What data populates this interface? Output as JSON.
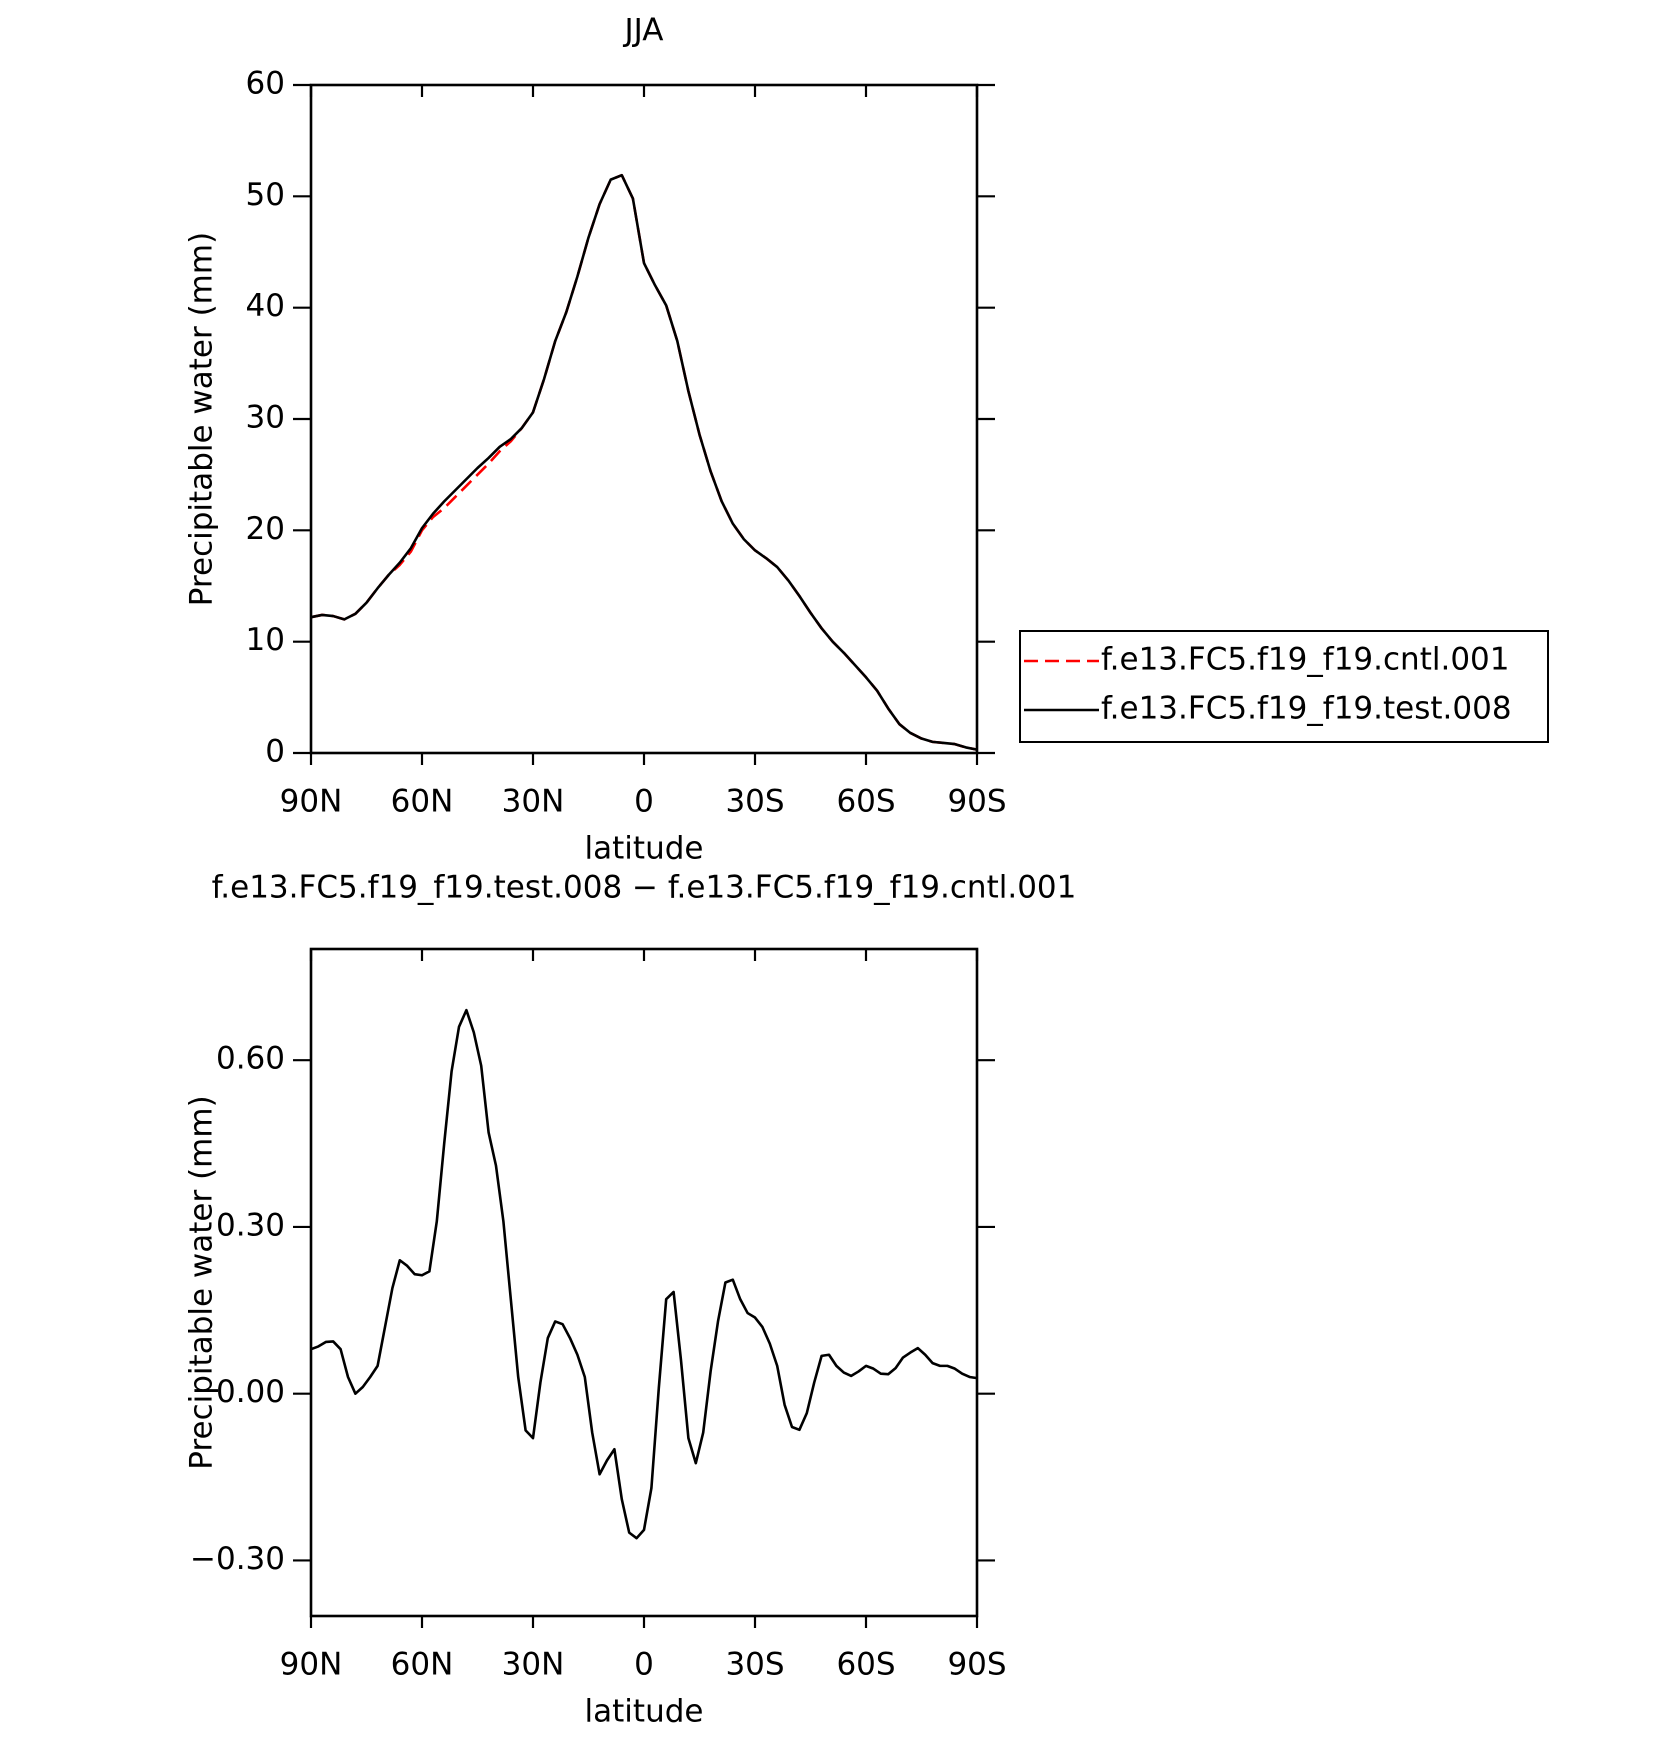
{
  "chart_data": [
    {
      "type": "line",
      "title": "JJA",
      "xlabel": "latitude",
      "ylabel": "Precipitable water (mm)",
      "x": [
        90,
        87,
        84,
        81,
        78,
        75,
        72,
        69,
        66,
        63,
        60,
        57,
        54,
        51,
        48,
        45,
        42,
        39,
        36,
        33,
        30,
        27,
        24,
        21,
        18,
        15,
        12,
        9,
        6,
        3,
        0,
        -3,
        -6,
        -9,
        -12,
        -15,
        -18,
        -21,
        -24,
        -27,
        -30,
        -33,
        -36,
        -39,
        -42,
        -45,
        -48,
        -51,
        -54,
        -57,
        -60,
        -63,
        -66,
        -69,
        -72,
        -75,
        -78,
        -81,
        -84,
        -87,
        -90
      ],
      "series": [
        {
          "name": "f.e13.FC5.f19_f19.cntl.001",
          "color": "#ff0000",
          "style": "dashed",
          "values": [
            12.2,
            12.4,
            12.3,
            12.0,
            12.5,
            13.5,
            14.8,
            16.0,
            16.9,
            18.1,
            20.0,
            21.2,
            22.0,
            23.0,
            24.0,
            25.0,
            26.0,
            27.1,
            28.0,
            29.2,
            30.6,
            33.6,
            37.0,
            39.6,
            42.8,
            46.3,
            49.3,
            51.5,
            51.9,
            49.8,
            44.0,
            42.0,
            40.2,
            37.0,
            32.5,
            28.6,
            25.3,
            22.6,
            20.6,
            19.2,
            18.2,
            17.5,
            16.7,
            15.5,
            14.1,
            12.6,
            11.2,
            10.0,
            9.0,
            7.9,
            6.8,
            5.6,
            4.0,
            2.6,
            1.8,
            1.3,
            1.0,
            0.9,
            0.8,
            0.5,
            0.3
          ]
        },
        {
          "name": "f.e13.FC5.f19_f19.test.008",
          "color": "#000000",
          "style": "solid",
          "values": [
            12.2,
            12.4,
            12.3,
            12.0,
            12.5,
            13.5,
            14.8,
            16.0,
            17.1,
            18.4,
            20.2,
            21.5,
            22.6,
            23.6,
            24.6,
            25.6,
            26.5,
            27.5,
            28.2,
            29.2,
            30.6,
            33.6,
            37.0,
            39.6,
            42.8,
            46.3,
            49.3,
            51.5,
            51.9,
            49.8,
            44.0,
            42.0,
            40.2,
            37.0,
            32.5,
            28.6,
            25.3,
            22.6,
            20.6,
            19.2,
            18.2,
            17.5,
            16.7,
            15.5,
            14.1,
            12.6,
            11.2,
            10.0,
            9.0,
            7.9,
            6.8,
            5.6,
            4.0,
            2.6,
            1.8,
            1.3,
            1.0,
            0.9,
            0.8,
            0.5,
            0.3
          ]
        }
      ],
      "xlim": [
        90,
        -90
      ],
      "xticks": [
        {
          "value": 90,
          "label": "90N"
        },
        {
          "value": 60,
          "label": "60N"
        },
        {
          "value": 30,
          "label": "30N"
        },
        0,
        {
          "value": -30,
          "label": "30S"
        },
        {
          "value": -60,
          "label": "60S"
        },
        {
          "value": -90,
          "label": "90S"
        }
      ],
      "ylim": [
        0,
        60
      ],
      "yticks": [
        0,
        10,
        20,
        30,
        40,
        50,
        60
      ],
      "legend": "right"
    },
    {
      "type": "line",
      "title": "f.e13.FC5.f19_f19.test.008 − f.e13.FC5.f19_f19.cntl.001",
      "xlabel": "latitude",
      "ylabel": "Precipitable water (mm)",
      "x": [
        90,
        88,
        86,
        84,
        82,
        80,
        78,
        76,
        74,
        72,
        70,
        68,
        66,
        64,
        62,
        60,
        58,
        56,
        54,
        52,
        50,
        48,
        46,
        44,
        42,
        40,
        38,
        36,
        34,
        32,
        30,
        28,
        26,
        24,
        22,
        20,
        18,
        16,
        14,
        12,
        10,
        8,
        6,
        4,
        2,
        0,
        -2,
        -4,
        -6,
        -8,
        -10,
        -12,
        -14,
        -16,
        -18,
        -20,
        -22,
        -24,
        -26,
        -28,
        -30,
        -32,
        -34,
        -36,
        -38,
        -40,
        -42,
        -44,
        -46,
        -48,
        -50,
        -52,
        -54,
        -56,
        -58,
        -60,
        -62,
        -64,
        -66,
        -68,
        -70,
        -72,
        -74,
        -76,
        -78,
        -80,
        -82,
        -84,
        -86,
        -88,
        -90
      ],
      "series": [
        {
          "color": "#000000",
          "style": "solid",
          "values": [
            0.08,
            0.085,
            0.093,
            0.094,
            0.08,
            0.03,
            0.0,
            0.012,
            0.03,
            0.05,
            0.12,
            0.19,
            0.24,
            0.23,
            0.215,
            0.213,
            0.22,
            0.31,
            0.45,
            0.58,
            0.66,
            0.69,
            0.65,
            0.59,
            0.47,
            0.41,
            0.31,
            0.17,
            0.03,
            -0.066,
            -0.08,
            0.02,
            0.1,
            0.13,
            0.125,
            0.1,
            0.07,
            0.03,
            -0.07,
            -0.145,
            -0.12,
            -0.1,
            -0.19,
            -0.25,
            -0.26,
            -0.245,
            -0.17,
            0.01,
            0.17,
            0.183,
            0.06,
            -0.08,
            -0.125,
            -0.07,
            0.04,
            0.13,
            0.2,
            0.205,
            0.17,
            0.145,
            0.137,
            0.12,
            0.09,
            0.05,
            -0.02,
            -0.06,
            -0.065,
            -0.035,
            0.02,
            0.068,
            0.07,
            0.05,
            0.038,
            0.032,
            0.04,
            0.05,
            0.045,
            0.036,
            0.035,
            0.046,
            0.065,
            0.074,
            0.082,
            0.07,
            0.055,
            0.05,
            0.05,
            0.045,
            0.036,
            0.03,
            0.028
          ]
        }
      ],
      "xlim": [
        90,
        -90
      ],
      "xticks": [
        {
          "value": 90,
          "label": "90N"
        },
        {
          "value": 60,
          "label": "60N"
        },
        {
          "value": 30,
          "label": "30N"
        },
        0,
        {
          "value": -30,
          "label": "30S"
        },
        {
          "value": -60,
          "label": "60S"
        },
        {
          "value": -90,
          "label": "90S"
        }
      ],
      "ylim": [
        -0.4,
        0.8
      ],
      "yticks": [
        {
          "value": -0.3,
          "label": "−0.30"
        },
        {
          "value": 0,
          "label": "0.00"
        },
        {
          "value": 0.3,
          "label": "0.30"
        },
        {
          "value": 0.6,
          "label": "0.60"
        }
      ]
    }
  ]
}
